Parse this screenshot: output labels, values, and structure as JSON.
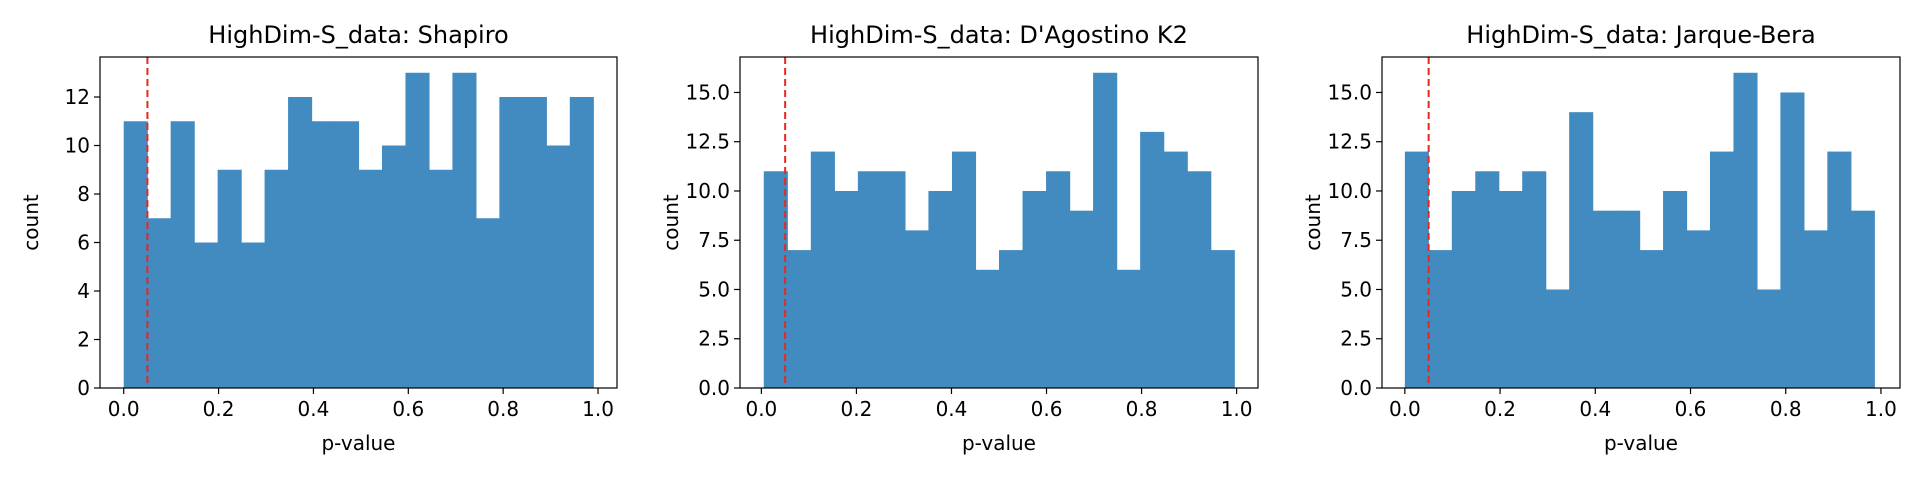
{
  "chart_data": [
    {
      "type": "histogram",
      "title": "HighDim-S_data: Shapiro",
      "xlabel": "p-value",
      "ylabel": "count",
      "xlim": [
        -0.05,
        1.04
      ],
      "ylim": [
        0,
        13.65
      ],
      "xticks": [
        "0.0",
        "0.2",
        "0.4",
        "0.6",
        "0.8",
        "1.0"
      ],
      "xtick_values": [
        0,
        0.2,
        0.4,
        0.6,
        0.8,
        1.0
      ],
      "yticks": [
        "0",
        "2",
        "4",
        "6",
        "8",
        "10",
        "12"
      ],
      "ytick_values": [
        0,
        2,
        4,
        6,
        8,
        10,
        12
      ],
      "bin_start": 0.0,
      "bin_width": 0.0495,
      "counts": [
        11,
        7,
        11,
        6,
        9,
        6,
        9,
        12,
        11,
        11,
        9,
        10,
        13,
        9,
        13,
        7,
        12,
        12,
        10,
        12
      ],
      "threshold": 0.05,
      "bar_color": "#428bc0",
      "threshold_color": "#e8281e"
    },
    {
      "type": "histogram",
      "title": "HighDim-S_data: D'Agostino K2",
      "xlabel": "p-value",
      "ylabel": "count",
      "xlim": [
        -0.045,
        1.045
      ],
      "ylim": [
        0,
        16.8
      ],
      "xticks": [
        "0.0",
        "0.2",
        "0.4",
        "0.6",
        "0.8",
        "1.0"
      ],
      "xtick_values": [
        0,
        0.2,
        0.4,
        0.6,
        0.8,
        1.0
      ],
      "yticks": [
        "0.0",
        "2.5",
        "5.0",
        "7.5",
        "10.0",
        "12.5",
        "15.0"
      ],
      "ytick_values": [
        0,
        2.5,
        5.0,
        7.5,
        10.0,
        12.5,
        15.0
      ],
      "bin_start": 0.005,
      "bin_width": 0.0495,
      "counts": [
        11,
        7,
        12,
        10,
        11,
        11,
        8,
        10,
        12,
        6,
        7,
        10,
        11,
        9,
        16,
        6,
        13,
        12,
        11,
        7
      ],
      "threshold": 0.05,
      "bar_color": "#428bc0",
      "threshold_color": "#e8281e"
    },
    {
      "type": "histogram",
      "title": "HighDim-S_data: Jarque-Bera",
      "xlabel": "p-value",
      "ylabel": "count",
      "xlim": [
        -0.048,
        1.04
      ],
      "ylim": [
        0,
        16.8
      ],
      "xticks": [
        "0.0",
        "0.2",
        "0.4",
        "0.6",
        "0.8",
        "1.0"
      ],
      "xtick_values": [
        0,
        0.2,
        0.4,
        0.6,
        0.8,
        1.0
      ],
      "yticks": [
        "0.0",
        "2.5",
        "5.0",
        "7.5",
        "10.0",
        "12.5",
        "15.0"
      ],
      "ytick_values": [
        0,
        2.5,
        5.0,
        7.5,
        10.0,
        12.5,
        15.0
      ],
      "bin_start": 0.0,
      "bin_width": 0.0493,
      "counts": [
        12,
        7,
        10,
        11,
        10,
        11,
        5,
        14,
        9,
        9,
        7,
        10,
        8,
        12,
        16,
        5,
        15,
        8,
        12,
        9
      ],
      "threshold": 0.05,
      "bar_color": "#428bc0",
      "threshold_color": "#e8281e"
    }
  ]
}
